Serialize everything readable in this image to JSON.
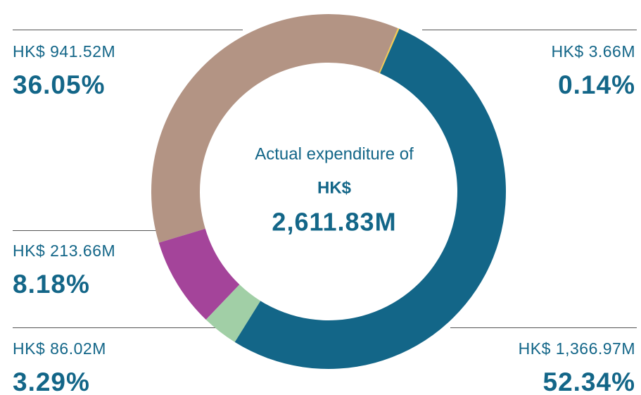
{
  "chart_data": {
    "type": "pie",
    "categories": null,
    "values": [
      0.14,
      52.34,
      3.29,
      8.18,
      36.05
    ],
    "value_labels": [
      "0.14%",
      "52.34%",
      "3.29%",
      "8.18%",
      "36.05%"
    ],
    "amount_labels": [
      "HK$ 3.66M",
      "HK$ 1,366.97M",
      "HK$ 86.02M",
      "HK$ 213.66M",
      "HK$ 941.52M"
    ],
    "colors": [
      "#f2c94c",
      "#136688",
      "#a1cfa6",
      "#a4449a",
      "#b39484"
    ],
    "center_text": [
      "Actual expenditure of",
      "HK$",
      "2,611.83M"
    ]
  }
}
